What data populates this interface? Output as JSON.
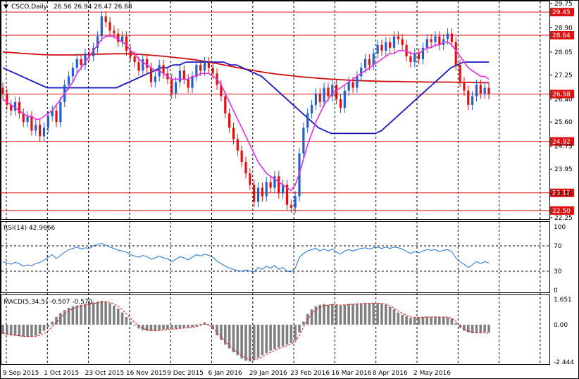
{
  "header": {
    "arrow": "▼",
    "title": "CSCO,Daily",
    "ohlc": "26.56 26.94 26.47 26.68"
  },
  "colors": {
    "bull": "#2060d0",
    "bear": "#e01010",
    "ma_fast": "#e030e0",
    "ma_mid": "#1818c0",
    "ma_slow": "#d01010",
    "level": "#e01010",
    "rsi": "#1e70d0",
    "macd_hist": "#808080",
    "macd_signal": "#e01010",
    "grid": "#000000"
  },
  "chart_data": [
    {
      "type": "candlestick",
      "title": "CSCO,Daily",
      "ylim": [
        22.25,
        29.75
      ],
      "price_ticks": [
        29.75,
        28.9,
        28.05,
        27.25,
        26.4,
        25.6,
        24.75,
        23.95,
        23.1,
        22.25
      ],
      "levels": [
        29.45,
        28.64,
        24.92,
        23.12,
        22.5
      ],
      "level_labels": [
        "29.45",
        "28.64",
        "24.92",
        "23.12",
        "22.50"
      ],
      "current_price": 26.58,
      "current_label": "26.58",
      "x_labels": [
        "9 Sep 2015",
        "1 Oct 2015",
        "23 Oct 2015",
        "16 Nov 2015",
        "9 Dec 2015",
        "6 Jan 2016",
        "29 Jan 2016",
        "23 Feb 2016",
        "16 Mar 2016",
        "8 Apr 2016",
        "2 May 2016"
      ],
      "closes": [
        26.6,
        26.2,
        26.0,
        26.3,
        25.9,
        25.6,
        25.8,
        25.3,
        25.5,
        25.1,
        25.4,
        25.8,
        26.0,
        25.6,
        26.3,
        26.9,
        27.2,
        27.5,
        27.8,
        27.6,
        28.0,
        27.9,
        28.2,
        28.6,
        29.3,
        29.1,
        28.8,
        28.7,
        28.4,
        28.6,
        28.1,
        27.9,
        27.7,
        27.4,
        27.8,
        27.5,
        27.0,
        27.2,
        27.6,
        27.3,
        27.1,
        26.6,
        27.0,
        27.4,
        27.1,
        26.8,
        27.2,
        27.6,
        27.4,
        27.7,
        27.5,
        27.3,
        26.9,
        26.5,
        25.9,
        25.4,
        25.0,
        24.6,
        24.2,
        23.8,
        23.4,
        22.8,
        23.3,
        23.0,
        23.5,
        23.3,
        23.7,
        23.1,
        23.4,
        22.7,
        22.6,
        23.0,
        24.5,
        25.4,
        25.9,
        26.2,
        26.6,
        26.3,
        26.8,
        26.5,
        26.9,
        26.4,
        26.1,
        26.7,
        27.0,
        26.8,
        27.2,
        27.5,
        27.8,
        27.6,
        28.0,
        28.3,
        28.1,
        28.4,
        28.2,
        28.6,
        28.5,
        28.3,
        27.9,
        27.7,
        28.0,
        27.8,
        28.2,
        28.5,
        28.4,
        28.6,
        28.3,
        28.5,
        28.7,
        28.4,
        27.6,
        27.0,
        26.7,
        26.2,
        26.5,
        26.9,
        26.6,
        26.8,
        26.58
      ],
      "ma_fast": [
        26.4,
        26.3,
        26.2,
        26.1,
        26.0,
        25.9,
        25.8,
        25.8,
        25.7,
        25.7,
        25.8,
        25.9,
        26.0,
        26.2,
        26.4,
        26.6,
        26.8,
        27.0,
        27.3,
        27.5,
        27.7,
        27.9,
        28.1,
        28.3,
        28.5,
        28.6,
        28.6,
        28.6,
        28.5,
        28.4,
        28.3,
        28.1,
        28.0,
        27.8,
        27.7,
        27.6,
        27.5,
        27.4,
        27.4,
        27.3,
        27.2,
        27.1,
        27.1,
        27.1,
        27.1,
        27.1,
        27.2,
        27.2,
        27.3,
        27.3,
        27.3,
        27.2,
        27.1,
        26.9,
        26.6,
        26.3,
        26.0,
        25.7,
        25.4,
        25.1,
        24.8,
        24.5,
        24.2,
        24.0,
        23.8,
        23.7,
        23.6,
        23.5,
        23.4,
        23.3,
        23.2,
        23.4,
        23.8,
        24.3,
        24.8,
        25.2,
        25.6,
        25.9,
        26.2,
        26.4,
        26.6,
        26.7,
        26.8,
        26.9,
        27.0,
        27.1,
        27.2,
        27.3,
        27.4,
        27.5,
        27.6,
        27.7,
        27.8,
        27.9,
        28.0,
        28.0,
        28.1,
        28.1,
        28.1,
        28.0,
        28.0,
        28.0,
        28.1,
        28.2,
        28.2,
        28.3,
        28.3,
        28.4,
        28.4,
        28.3,
        28.1,
        27.9,
        27.7,
        27.5,
        27.4,
        27.3,
        27.2,
        27.2,
        27.1
      ],
      "ma_mid": [
        27.5,
        27.4,
        27.3,
        27.2,
        27.1,
        27.0,
        26.9,
        26.8,
        26.8,
        26.8,
        26.8,
        26.8,
        26.8,
        26.8,
        26.8,
        26.8,
        26.8,
        26.8,
        26.8,
        26.9,
        27.0,
        27.1,
        27.2,
        27.3,
        27.4,
        27.5,
        27.5,
        27.6,
        27.6,
        27.7,
        27.7,
        27.7,
        27.7,
        27.7,
        27.7,
        27.7,
        27.6,
        27.6,
        27.5,
        27.4,
        27.3,
        27.2,
        27.0,
        26.8,
        26.6,
        26.4,
        26.2,
        26.0,
        25.8,
        25.6,
        25.4,
        25.3,
        25.2,
        25.2,
        25.2,
        25.2,
        25.2,
        25.2,
        25.2,
        25.2,
        25.3,
        25.5,
        25.7,
        25.9,
        26.1,
        26.3,
        26.5,
        26.7,
        26.9,
        27.1,
        27.3,
        27.5,
        27.6,
        27.7,
        27.7,
        27.7,
        27.7,
        27.7
      ],
      "ma_slow": [
        28.05,
        28.03,
        28.0,
        27.98,
        27.96,
        27.95,
        27.95,
        27.95,
        27.96,
        27.97,
        27.98,
        27.99,
        27.99,
        27.98,
        27.96,
        27.93,
        27.9,
        27.86,
        27.82,
        27.78,
        27.72,
        27.66,
        27.59,
        27.52,
        27.45,
        27.39,
        27.33,
        27.28,
        27.24,
        27.2,
        27.17,
        27.14,
        27.11,
        27.09,
        27.07,
        27.05,
        27.04,
        27.03,
        27.02,
        27.02,
        27.01,
        27.01,
        27.0,
        27.0,
        27.0,
        26.99,
        26.99,
        26.98,
        26.98
      ]
    },
    {
      "type": "line",
      "title": "RSI(14) 42.9666",
      "ylim": [
        0,
        100
      ],
      "ticks": [
        100,
        70,
        30,
        0
      ],
      "tick_labels": [
        "100",
        "70",
        "30",
        "0"
      ],
      "values": [
        45,
        43,
        41,
        44,
        42,
        38,
        40,
        39,
        42,
        44,
        47,
        52,
        56,
        50,
        55,
        60,
        64,
        66,
        68,
        65,
        67,
        66,
        70,
        72,
        74,
        71,
        68,
        66,
        63,
        62,
        60,
        56,
        54,
        52,
        55,
        53,
        49,
        51,
        54,
        51,
        50,
        45,
        49,
        53,
        51,
        48,
        52,
        56,
        54,
        57,
        55,
        52,
        46,
        42,
        38,
        35,
        33,
        31,
        30,
        32,
        30,
        29,
        36,
        33,
        38,
        35,
        39,
        33,
        36,
        30,
        29,
        35,
        52,
        58,
        62,
        64,
        66,
        62,
        65,
        62,
        65,
        60,
        57,
        62,
        64,
        62,
        64,
        66,
        67,
        65,
        67,
        68,
        66,
        68,
        66,
        68,
        67,
        65,
        61,
        58,
        61,
        59,
        62,
        64,
        63,
        64,
        61,
        63,
        64,
        61,
        51,
        45,
        41,
        36,
        40,
        45,
        42,
        45,
        43
      ]
    },
    {
      "type": "bar",
      "title": "MACD(5,34,5) -0.507 -0.570",
      "ylim": [
        -2.444,
        1.651
      ],
      "ticks": [
        1.651,
        0.0,
        -2.444
      ],
      "tick_labels": [
        "1.651",
        "0.00",
        "-2.444"
      ],
      "values": [
        -0.6,
        -0.65,
        -0.7,
        -0.72,
        -0.75,
        -0.78,
        -0.8,
        -0.78,
        -0.72,
        -0.6,
        -0.4,
        -0.15,
        0.2,
        0.5,
        0.75,
        0.95,
        1.1,
        1.2,
        1.25,
        1.3,
        1.35,
        1.4,
        1.45,
        1.5,
        1.55,
        1.5,
        1.4,
        1.25,
        1.05,
        0.8,
        0.5,
        0.2,
        -0.05,
        -0.25,
        -0.35,
        -0.4,
        -0.42,
        -0.4,
        -0.35,
        -0.32,
        -0.3,
        -0.28,
        -0.26,
        -0.22,
        -0.2,
        -0.18,
        -0.15,
        -0.1,
        0.05,
        0.15,
        0.0,
        -0.3,
        -0.7,
        -1.0,
        -1.3,
        -1.55,
        -1.8,
        -2.0,
        -2.2,
        -2.35,
        -2.4,
        -2.3,
        -2.15,
        -2.0,
        -1.85,
        -1.7,
        -1.6,
        -1.5,
        -1.4,
        -1.3,
        -1.2,
        -1.0,
        -0.5,
        0.2,
        0.7,
        1.0,
        1.2,
        1.3,
        1.35,
        1.3,
        1.35,
        1.3,
        1.25,
        1.3,
        1.35,
        1.35,
        1.38,
        1.4,
        1.42,
        1.4,
        1.42,
        1.4,
        1.38,
        1.3,
        1.15,
        1.0,
        0.8,
        0.65,
        0.55,
        0.45,
        0.45,
        0.48,
        0.5,
        0.52,
        0.5,
        0.52,
        0.5,
        0.5,
        0.48,
        0.38,
        0.1,
        -0.2,
        -0.4,
        -0.5,
        -0.55,
        -0.55,
        -0.52,
        -0.5,
        -0.507
      ],
      "signal": [
        -0.55,
        -0.6,
        -0.65,
        -0.7,
        -0.73,
        -0.76,
        -0.78,
        -0.78,
        -0.76,
        -0.7,
        -0.58,
        -0.4,
        -0.15,
        0.15,
        0.45,
        0.7,
        0.9,
        1.05,
        1.15,
        1.22,
        1.28,
        1.33,
        1.38,
        1.43,
        1.48,
        1.5,
        1.46,
        1.36,
        1.2,
        0.98,
        0.72,
        0.42,
        0.15,
        -0.08,
        -0.24,
        -0.33,
        -0.38,
        -0.4,
        -0.38,
        -0.35,
        -0.32,
        -0.3,
        -0.28,
        -0.25,
        -0.22,
        -0.2,
        -0.17,
        -0.13,
        -0.05,
        0.05,
        0.0,
        -0.2,
        -0.5,
        -0.8,
        -1.1,
        -1.35,
        -1.6,
        -1.82,
        -2.02,
        -2.18,
        -2.3,
        -2.3,
        -2.22,
        -2.1,
        -1.95,
        -1.8,
        -1.68,
        -1.57,
        -1.47,
        -1.37,
        -1.27,
        -1.1,
        -0.7,
        -0.15,
        0.35,
        0.72,
        0.98,
        1.15,
        1.25,
        1.28,
        1.31,
        1.3,
        1.28,
        1.29,
        1.32,
        1.33,
        1.35,
        1.37,
        1.39,
        1.39,
        1.4,
        1.4,
        1.39,
        1.34,
        1.22,
        1.08,
        0.9,
        0.74,
        0.62,
        0.52,
        0.48,
        0.48,
        0.49,
        0.51,
        0.5,
        0.51,
        0.5,
        0.5,
        0.49,
        0.42,
        0.22,
        -0.05,
        -0.28,
        -0.42,
        -0.5,
        -0.54,
        -0.54,
        -0.53,
        -0.57
      ]
    }
  ]
}
